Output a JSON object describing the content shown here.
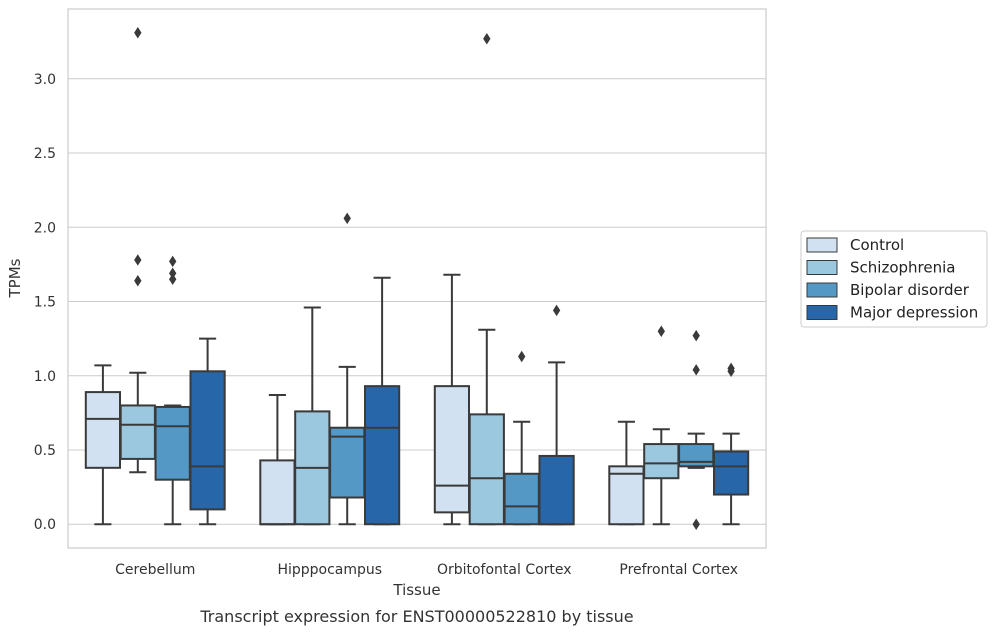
{
  "caption": "Transcript expression for ENST00000522810 by tissue",
  "chart_data": {
    "type": "boxplot",
    "xlabel": "Tissue",
    "ylabel": "TPMs",
    "ylim": [
      -0.16,
      3.47
    ],
    "yticks": [
      0.0,
      0.5,
      1.0,
      1.5,
      2.0,
      2.5,
      3.0
    ],
    "ytick_labels": [
      "0.0",
      "0.5",
      "1.0",
      "1.5",
      "2.0",
      "2.5",
      "3.0"
    ],
    "grid": true,
    "legend_position": "right",
    "categories": [
      "Cerebellum",
      "Hipppocampus",
      "Orbitofontal Cortex",
      "Prefrontal Cortex"
    ],
    "series": [
      {
        "name": "Control",
        "color": "#d1e1f1",
        "boxes": [
          {
            "whislo": 0.0,
            "q1": 0.38,
            "med": 0.71,
            "q3": 0.89,
            "whishi": 1.07,
            "fliers": []
          },
          {
            "whislo": 0.0,
            "q1": 0.0,
            "med": 0.0,
            "q3": 0.43,
            "whishi": 0.87,
            "fliers": []
          },
          {
            "whislo": 0.0,
            "q1": 0.08,
            "med": 0.26,
            "q3": 0.93,
            "whishi": 1.68,
            "fliers": []
          },
          {
            "whislo": 0.0,
            "q1": 0.0,
            "med": 0.34,
            "q3": 0.39,
            "whishi": 0.69,
            "fliers": []
          }
        ]
      },
      {
        "name": "Schizophrenia",
        "color": "#9bc7df",
        "boxes": [
          {
            "whislo": 0.35,
            "q1": 0.44,
            "med": 0.67,
            "q3": 0.8,
            "whishi": 1.02,
            "fliers": [
              1.64,
              1.78,
              3.31
            ]
          },
          {
            "whislo": 0.0,
            "q1": 0.0,
            "med": 0.38,
            "q3": 0.76,
            "whishi": 1.46,
            "fliers": []
          },
          {
            "whislo": 0.0,
            "q1": 0.0,
            "med": 0.31,
            "q3": 0.74,
            "whishi": 1.31,
            "fliers": [
              3.27
            ]
          },
          {
            "whislo": 0.0,
            "q1": 0.31,
            "med": 0.41,
            "q3": 0.54,
            "whishi": 0.64,
            "fliers": [
              1.3
            ]
          }
        ]
      },
      {
        "name": "Bipolar disorder",
        "color": "#5498c6",
        "boxes": [
          {
            "whislo": 0.0,
            "q1": 0.3,
            "med": 0.66,
            "q3": 0.79,
            "whishi": 0.8,
            "fliers": [
              1.65,
              1.69,
              1.77
            ]
          },
          {
            "whislo": 0.0,
            "q1": 0.18,
            "med": 0.59,
            "q3": 0.65,
            "whishi": 1.06,
            "fliers": [
              2.06
            ]
          },
          {
            "whislo": 0.0,
            "q1": 0.0,
            "med": 0.12,
            "q3": 0.34,
            "whishi": 0.69,
            "fliers": [
              1.13
            ]
          },
          {
            "whislo": 0.38,
            "q1": 0.39,
            "med": 0.42,
            "q3": 0.54,
            "whishi": 0.61,
            "fliers": [
              0.0,
              1.04,
              1.27
            ]
          }
        ]
      },
      {
        "name": "Major depression",
        "color": "#2766a8",
        "boxes": [
          {
            "whislo": 0.0,
            "q1": 0.1,
            "med": 0.39,
            "q3": 1.03,
            "whishi": 1.25,
            "fliers": []
          },
          {
            "whislo": 0.0,
            "q1": 0.0,
            "med": 0.65,
            "q3": 0.93,
            "whishi": 1.66,
            "fliers": []
          },
          {
            "whislo": 0.0,
            "q1": 0.0,
            "med": 0.0,
            "q3": 0.46,
            "whishi": 1.09,
            "fliers": [
              1.44
            ]
          },
          {
            "whislo": 0.0,
            "q1": 0.2,
            "med": 0.39,
            "q3": 0.49,
            "whishi": 0.61,
            "fliers": [
              1.03,
              1.05
            ]
          }
        ]
      }
    ]
  }
}
